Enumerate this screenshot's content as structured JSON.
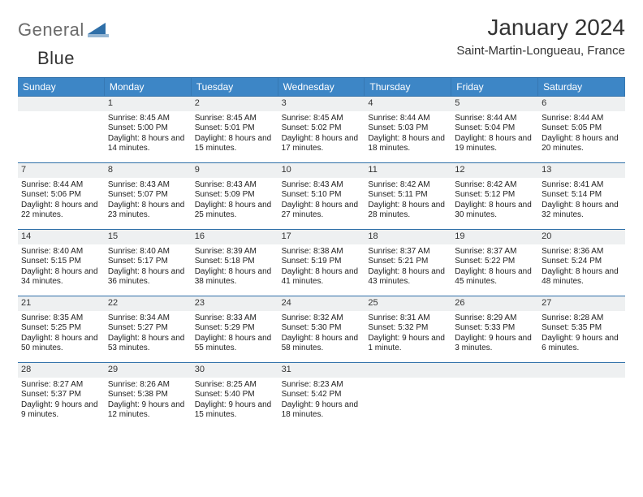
{
  "brand": {
    "part1": "General",
    "part2": "Blue"
  },
  "header": {
    "month_title": "January 2024",
    "location": "Saint-Martin-Longueau, France"
  },
  "colors": {
    "header_bg": "#3d86c6",
    "rule": "#2f6fa8",
    "daynum_bg": "#eef0f1",
    "text": "#333333"
  },
  "days_of_week": [
    "Sunday",
    "Monday",
    "Tuesday",
    "Wednesday",
    "Thursday",
    "Friday",
    "Saturday"
  ],
  "first_weekday_index": 1,
  "days": [
    {
      "n": "1",
      "sunrise": "8:45 AM",
      "sunset": "5:00 PM",
      "daylight": "8 hours and 14 minutes."
    },
    {
      "n": "2",
      "sunrise": "8:45 AM",
      "sunset": "5:01 PM",
      "daylight": "8 hours and 15 minutes."
    },
    {
      "n": "3",
      "sunrise": "8:45 AM",
      "sunset": "5:02 PM",
      "daylight": "8 hours and 17 minutes."
    },
    {
      "n": "4",
      "sunrise": "8:44 AM",
      "sunset": "5:03 PM",
      "daylight": "8 hours and 18 minutes."
    },
    {
      "n": "5",
      "sunrise": "8:44 AM",
      "sunset": "5:04 PM",
      "daylight": "8 hours and 19 minutes."
    },
    {
      "n": "6",
      "sunrise": "8:44 AM",
      "sunset": "5:05 PM",
      "daylight": "8 hours and 20 minutes."
    },
    {
      "n": "7",
      "sunrise": "8:44 AM",
      "sunset": "5:06 PM",
      "daylight": "8 hours and 22 minutes."
    },
    {
      "n": "8",
      "sunrise": "8:43 AM",
      "sunset": "5:07 PM",
      "daylight": "8 hours and 23 minutes."
    },
    {
      "n": "9",
      "sunrise": "8:43 AM",
      "sunset": "5:09 PM",
      "daylight": "8 hours and 25 minutes."
    },
    {
      "n": "10",
      "sunrise": "8:43 AM",
      "sunset": "5:10 PM",
      "daylight": "8 hours and 27 minutes."
    },
    {
      "n": "11",
      "sunrise": "8:42 AM",
      "sunset": "5:11 PM",
      "daylight": "8 hours and 28 minutes."
    },
    {
      "n": "12",
      "sunrise": "8:42 AM",
      "sunset": "5:12 PM",
      "daylight": "8 hours and 30 minutes."
    },
    {
      "n": "13",
      "sunrise": "8:41 AM",
      "sunset": "5:14 PM",
      "daylight": "8 hours and 32 minutes."
    },
    {
      "n": "14",
      "sunrise": "8:40 AM",
      "sunset": "5:15 PM",
      "daylight": "8 hours and 34 minutes."
    },
    {
      "n": "15",
      "sunrise": "8:40 AM",
      "sunset": "5:17 PM",
      "daylight": "8 hours and 36 minutes."
    },
    {
      "n": "16",
      "sunrise": "8:39 AM",
      "sunset": "5:18 PM",
      "daylight": "8 hours and 38 minutes."
    },
    {
      "n": "17",
      "sunrise": "8:38 AM",
      "sunset": "5:19 PM",
      "daylight": "8 hours and 41 minutes."
    },
    {
      "n": "18",
      "sunrise": "8:37 AM",
      "sunset": "5:21 PM",
      "daylight": "8 hours and 43 minutes."
    },
    {
      "n": "19",
      "sunrise": "8:37 AM",
      "sunset": "5:22 PM",
      "daylight": "8 hours and 45 minutes."
    },
    {
      "n": "20",
      "sunrise": "8:36 AM",
      "sunset": "5:24 PM",
      "daylight": "8 hours and 48 minutes."
    },
    {
      "n": "21",
      "sunrise": "8:35 AM",
      "sunset": "5:25 PM",
      "daylight": "8 hours and 50 minutes."
    },
    {
      "n": "22",
      "sunrise": "8:34 AM",
      "sunset": "5:27 PM",
      "daylight": "8 hours and 53 minutes."
    },
    {
      "n": "23",
      "sunrise": "8:33 AM",
      "sunset": "5:29 PM",
      "daylight": "8 hours and 55 minutes."
    },
    {
      "n": "24",
      "sunrise": "8:32 AM",
      "sunset": "5:30 PM",
      "daylight": "8 hours and 58 minutes."
    },
    {
      "n": "25",
      "sunrise": "8:31 AM",
      "sunset": "5:32 PM",
      "daylight": "9 hours and 1 minute."
    },
    {
      "n": "26",
      "sunrise": "8:29 AM",
      "sunset": "5:33 PM",
      "daylight": "9 hours and 3 minutes."
    },
    {
      "n": "27",
      "sunrise": "8:28 AM",
      "sunset": "5:35 PM",
      "daylight": "9 hours and 6 minutes."
    },
    {
      "n": "28",
      "sunrise": "8:27 AM",
      "sunset": "5:37 PM",
      "daylight": "9 hours and 9 minutes."
    },
    {
      "n": "29",
      "sunrise": "8:26 AM",
      "sunset": "5:38 PM",
      "daylight": "9 hours and 12 minutes."
    },
    {
      "n": "30",
      "sunrise": "8:25 AM",
      "sunset": "5:40 PM",
      "daylight": "9 hours and 15 minutes."
    },
    {
      "n": "31",
      "sunrise": "8:23 AM",
      "sunset": "5:42 PM",
      "daylight": "9 hours and 18 minutes."
    }
  ],
  "labels": {
    "sunrise": "Sunrise:",
    "sunset": "Sunset:",
    "daylight": "Daylight:"
  }
}
